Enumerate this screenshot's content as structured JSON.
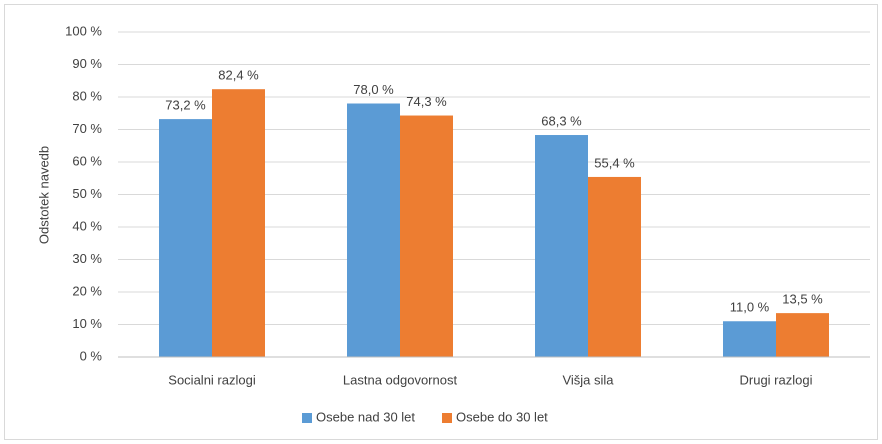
{
  "chart_data": {
    "type": "bar",
    "y_label": "Odstotek navedb",
    "categories": [
      "Socialni razlogi",
      "Lastna odgovornost",
      "Višja sila",
      "Drugi razlogi"
    ],
    "series": [
      {
        "name": "Osebe nad 30 let",
        "color": "#5b9bd5",
        "values": [
          73.2,
          78.0,
          68.3,
          11.0
        ],
        "value_labels": [
          "73,2 %",
          "78,0 %",
          "68,3 %",
          "11,0 %"
        ]
      },
      {
        "name": "Osebe do 30 let",
        "color": "#ed7d31",
        "values": [
          82.4,
          74.3,
          55.4,
          13.5
        ],
        "value_labels": [
          "82,4 %",
          "74,3 %",
          "55,4 %",
          "13,5 %"
        ]
      }
    ],
    "ylim": [
      0,
      100
    ],
    "yticks": [
      {
        "value": 0,
        "label": "0 %"
      },
      {
        "value": 10,
        "label": "10 %"
      },
      {
        "value": 20,
        "label": "20 %"
      },
      {
        "value": 30,
        "label": "30 %"
      },
      {
        "value": 40,
        "label": "40 %"
      },
      {
        "value": 50,
        "label": "50 %"
      },
      {
        "value": 60,
        "label": "60 %"
      },
      {
        "value": 70,
        "label": "70 %"
      },
      {
        "value": 80,
        "label": "80 %"
      },
      {
        "value": 90,
        "label": "90 %"
      },
      {
        "value": 100,
        "label": "100 %"
      }
    ],
    "grid": true,
    "legend": "bottom"
  }
}
